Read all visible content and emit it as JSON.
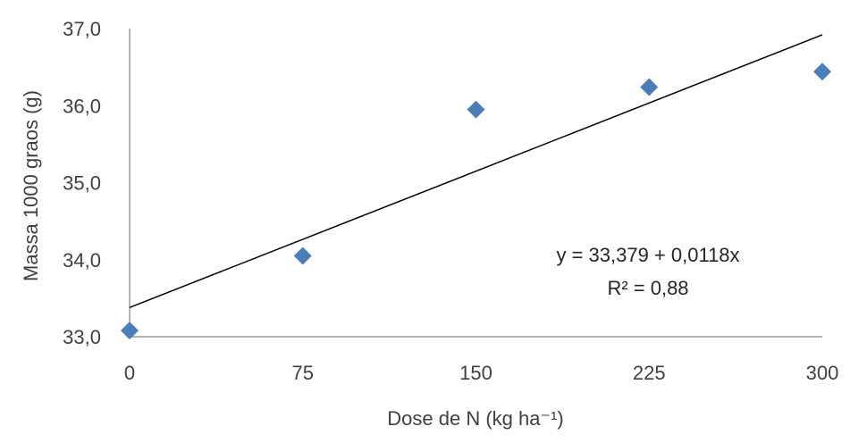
{
  "chart_data": {
    "type": "scatter",
    "x": [
      0,
      75,
      150,
      225,
      300
    ],
    "y": [
      33.08,
      34.05,
      35.95,
      36.24,
      36.44
    ],
    "xlim": [
      0,
      300
    ],
    "ylim": [
      33.0,
      37.0
    ],
    "xticks": [
      "0",
      "75",
      "150",
      "225",
      "300"
    ],
    "yticks": [
      "33,0",
      "34,0",
      "35,0",
      "36,0",
      "37,0"
    ],
    "xlabel": "Dose de N (kg ha⁻¹)",
    "ylabel": "Massa 1000 graos (g)",
    "trendline": {
      "intercept": 33.379,
      "slope": 0.0118,
      "equation": "y = 33,379  + 0,0118x",
      "r2": "R² = 0,88"
    },
    "marker": "diamond",
    "marker_color": "#4A7EBB",
    "line_color": "#000000",
    "grid": false,
    "legend": "none"
  }
}
